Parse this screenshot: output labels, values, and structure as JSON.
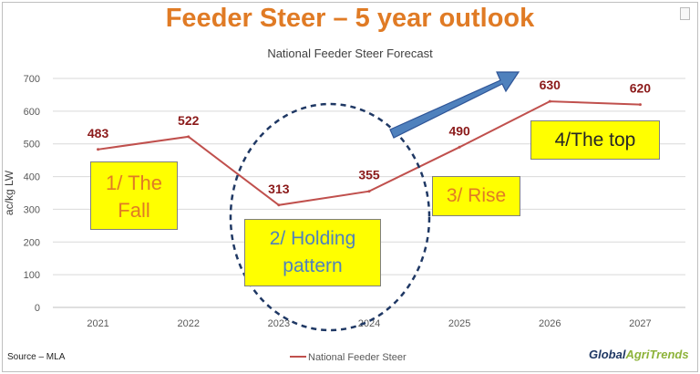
{
  "title": "Feeder Steer – 5 year outlook",
  "chart_data": {
    "type": "line",
    "title": "National Feeder Steer Forecast",
    "ylabel": "ac/kg LW",
    "categories": [
      "2021",
      "2022",
      "2023",
      "2024",
      "2025",
      "2026",
      "2027"
    ],
    "series": [
      {
        "name": "National Feeder Steer",
        "values": [
          483,
          522,
          313,
          355,
          490,
          630,
          620
        ],
        "color": "#c0504d"
      }
    ],
    "data_labels": [
      "483",
      "522",
      "313",
      "355",
      "490",
      "630",
      "620"
    ],
    "ylim": [
      0,
      700
    ],
    "yticks": [
      "0",
      "100",
      "200",
      "300",
      "400",
      "500",
      "600",
      "700"
    ],
    "grid": true,
    "legend": "bottom"
  },
  "annotations": {
    "fall": "1/ The Fall",
    "holding": "2/ Holding pattern",
    "rise": "3/ Rise",
    "top": "4/The top"
  },
  "colors": {
    "title": "#e07b25",
    "line": "#c0504d",
    "label": "#8b1a1a",
    "annotation_text": "#e07b25",
    "annotation_box": "#ffff00",
    "circle": "#1f3864",
    "arrow": "#4f81bd"
  },
  "source": "Source – MLA",
  "logo": {
    "part1": "Global",
    "part2": "AgriTrends"
  }
}
